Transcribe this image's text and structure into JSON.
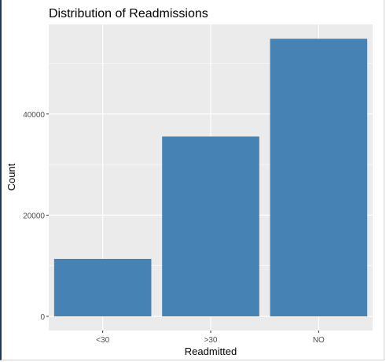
{
  "chart_data": {
    "type": "bar",
    "title": "Distribution of Readmissions",
    "xlabel": "Readmitted",
    "ylabel": "Count",
    "categories": [
      "<30",
      ">30",
      "NO"
    ],
    "values": [
      11357,
      35545,
      54864
    ],
    "ylim": [
      -2800,
      57700
    ],
    "yticks": [
      0,
      20000,
      40000
    ],
    "ytick_labels": [
      "0",
      "20000",
      "40000"
    ],
    "grid": true,
    "bar_color": "#4682B4",
    "panel_color": "#EBEBEB",
    "grid_color": "#FFFFFF"
  }
}
